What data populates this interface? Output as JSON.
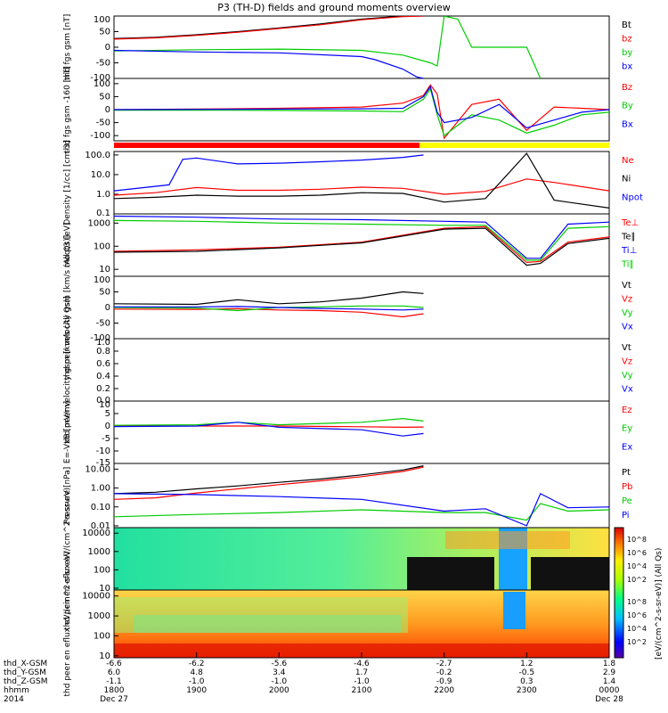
{
  "title": "P3 (TH-D) fields and ground moments overview",
  "colors": {
    "black": "#000000",
    "red": "#ff0000",
    "green": "#00cc00",
    "blue": "#0000ff",
    "yellow": "#ffff00"
  },
  "time_ticks": [
    "1800",
    "1900",
    "2000",
    "2100",
    "2200",
    "2300",
    "0000"
  ],
  "ephemeris": {
    "labels": [
      "thd_X-GSM",
      "thd_Y-GSM",
      "thd_Z-GSM",
      "hhmm",
      "2014"
    ],
    "columns": [
      {
        "x": "-6.6",
        "y": "6.0",
        "z": "-1.1",
        "hhmm": "1800",
        "date": "Dec 27"
      },
      {
        "x": "-6.2",
        "y": "4.8",
        "z": "-1.0",
        "hhmm": "1900",
        "date": ""
      },
      {
        "x": "-5.6",
        "y": "3.4",
        "z": "-1.0",
        "hhmm": "2000",
        "date": ""
      },
      {
        "x": "-4.6",
        "y": "1.7",
        "z": "-1.0",
        "hhmm": "2100",
        "date": ""
      },
      {
        "x": "-2.7",
        "y": "-0.2",
        "z": "-0.9",
        "hhmm": "2200",
        "date": ""
      },
      {
        "x": "1.2",
        "y": "-0.5",
        "z": "0.3",
        "hhmm": "2300",
        "date": ""
      },
      {
        "x": "1.8",
        "y": "2.9",
        "z": "1.4",
        "hhmm": "0000",
        "date": "Dec 28"
      }
    ]
  },
  "colorbar": {
    "label": "[eV/(cm^2-s-sr-eV)] (All Qs)",
    "ticks": [
      "10^8",
      "10^6",
      "10^4",
      "10^2"
    ],
    "ticks_lower": [
      "10^8",
      "10^6",
      "10^4",
      "10^2"
    ]
  },
  "chart_data": [
    {
      "type": "line",
      "name": "fgs",
      "ylabel": "thd fgs gsm [nT]",
      "ylim": [
        -100,
        100
      ],
      "ticks": [
        "100",
        "50",
        "0",
        "-50",
        "-100"
      ],
      "legend": [
        {
          "name": "Bt",
          "color": "#000000"
        },
        {
          "name": "bz",
          "color": "#ff0000"
        },
        {
          "name": "by",
          "color": "#00cc00"
        },
        {
          "name": "bx",
          "color": "#0000ff"
        }
      ],
      "series": [
        {
          "name": "Bt",
          "color": "#000000",
          "x": [
            1800,
            1830,
            1900,
            1930,
            2000,
            2030,
            2100,
            2130,
            2145
          ],
          "y": [
            28,
            32,
            40,
            50,
            62,
            75,
            90,
            100,
            100
          ]
        },
        {
          "name": "bz",
          "color": "#ff0000",
          "x": [
            1800,
            1830,
            1900,
            1930,
            2000,
            2030,
            2100,
            2130,
            2145
          ],
          "y": [
            26,
            30,
            38,
            48,
            60,
            72,
            88,
            98,
            100
          ]
        },
        {
          "name": "by",
          "color": "#00cc00",
          "x": [
            1800,
            1900,
            2000,
            2100,
            2130,
            2150,
            2155,
            2200,
            2210,
            2220,
            2300,
            2310
          ],
          "y": [
            -12,
            -8,
            -6,
            -10,
            -25,
            -50,
            -60,
            100,
            90,
            0,
            0,
            -100
          ]
        },
        {
          "name": "bx",
          "color": "#0000ff",
          "x": [
            1800,
            1900,
            2000,
            2100,
            2110,
            2130,
            2140,
            2145
          ],
          "y": [
            -10,
            -15,
            -18,
            -30,
            -40,
            -70,
            -95,
            -100
          ]
        }
      ]
    },
    {
      "type": "line",
      "name": "fgs_dsl",
      "ylabel": "thd fgs gsm -160 [nT]",
      "ylim": [
        -120,
        120
      ],
      "ticks": [
        "100",
        "50",
        "0",
        "-50",
        "-100"
      ],
      "legend": [
        {
          "name": "Bz",
          "color": "#ff0000"
        },
        {
          "name": "By",
          "color": "#00cc00"
        },
        {
          "name": "Bx",
          "color": "#0000ff"
        }
      ],
      "series": [
        {
          "name": "Bz",
          "color": "#ff0000",
          "x": [
            1800,
            1900,
            2000,
            2100,
            2130,
            2145,
            2150,
            2155,
            2200,
            2220,
            2240,
            2300,
            2320,
            2340,
            2400
          ],
          "y": [
            0,
            2,
            5,
            10,
            25,
            55,
            95,
            60,
            -110,
            20,
            40,
            -80,
            10,
            5,
            0
          ]
        },
        {
          "name": "By",
          "color": "#00cc00",
          "x": [
            1800,
            1900,
            2000,
            2100,
            2130,
            2145,
            2150,
            2155,
            2200,
            2220,
            2240,
            2300,
            2320,
            2340,
            2400
          ],
          "y": [
            -2,
            -2,
            -3,
            -5,
            -8,
            40,
            80,
            -20,
            -100,
            -20,
            -40,
            -90,
            -60,
            -20,
            -10
          ]
        },
        {
          "name": "Bx",
          "color": "#0000ff",
          "x": [
            1800,
            1900,
            2000,
            2100,
            2130,
            2145,
            2150,
            2155,
            2200,
            2220,
            2240,
            2300,
            2320,
            2340,
            2400
          ],
          "y": [
            0,
            1,
            2,
            3,
            5,
            50,
            88,
            -10,
            -50,
            -30,
            20,
            -70,
            -40,
            -10,
            0
          ]
        }
      ]
    },
    {
      "type": "line",
      "name": "density",
      "ylabel": "Density [1/cc] [cm-3]",
      "log": true,
      "ylim": [
        0.1,
        150
      ],
      "ticks": [
        "100.0",
        "10.0",
        "1.0",
        "0.1"
      ],
      "legend": [
        {
          "name": "Ne",
          "color": "#ff0000"
        },
        {
          "name": "Ni",
          "color": "#000000"
        },
        {
          "name": "Npot",
          "color": "#0000ff"
        }
      ],
      "series": [
        {
          "name": "Ne",
          "color": "#ff0000",
          "x": [
            1800,
            1830,
            1900,
            1930,
            2000,
            2030,
            2100,
            2130,
            2200,
            2230,
            2300,
            2320,
            2400
          ],
          "y": [
            0.9,
            1.2,
            2.2,
            1.6,
            1.6,
            1.8,
            2.3,
            2.0,
            1.0,
            1.4,
            6,
            4,
            1.5
          ]
        },
        {
          "name": "Ni",
          "color": "#000000",
          "x": [
            1800,
            1830,
            1900,
            1930,
            2000,
            2030,
            2100,
            2130,
            2200,
            2230,
            2300,
            2320,
            2400
          ],
          "y": [
            0.6,
            0.7,
            0.9,
            0.8,
            0.8,
            0.9,
            1.2,
            1.1,
            0.4,
            0.6,
            120,
            0.5,
            0.2
          ]
        },
        {
          "name": "Npot",
          "color": "#0000ff",
          "x": [
            1800,
            1840,
            1850,
            1900,
            1930,
            2000,
            2030,
            2100,
            2130,
            2145
          ],
          "y": [
            1.5,
            3,
            60,
            70,
            35,
            38,
            45,
            55,
            75,
            100
          ]
        }
      ]
    },
    {
      "type": "line",
      "name": "temperature",
      "ylabel": "moqt3 [eV]",
      "log": true,
      "ylim": [
        5,
        2500
      ],
      "ticks": [
        "1000",
        "100",
        "10"
      ],
      "legend": [
        {
          "name": "Te⊥",
          "color": "#ff0000"
        },
        {
          "name": "Te∥",
          "color": "#000000"
        },
        {
          "name": "Ti⊥",
          "color": "#0000ff"
        },
        {
          "name": "Ti∥",
          "color": "#00cc00"
        }
      ],
      "series": [
        {
          "name": "Te⊥",
          "color": "#ff0000",
          "x": [
            1800,
            1900,
            2000,
            2100,
            2200,
            2230,
            2300,
            2310,
            2330,
            2400
          ],
          "y": [
            60,
            70,
            90,
            150,
            600,
            700,
            20,
            22,
            150,
            250
          ]
        },
        {
          "name": "Te∥",
          "color": "#000000",
          "x": [
            1800,
            1900,
            2000,
            2100,
            2200,
            2230,
            2300,
            2310,
            2330,
            2400
          ],
          "y": [
            55,
            60,
            85,
            140,
            550,
            600,
            15,
            18,
            130,
            220
          ]
        },
        {
          "name": "Ti⊥",
          "color": "#0000ff",
          "x": [
            1800,
            1900,
            2000,
            2100,
            2200,
            2230,
            2300,
            2310,
            2330,
            2400
          ],
          "y": [
            2000,
            1800,
            1500,
            1400,
            1200,
            1100,
            30,
            30,
            900,
            1100
          ]
        },
        {
          "name": "Ti∥",
          "color": "#00cc00",
          "x": [
            1800,
            1900,
            2000,
            2100,
            2200,
            2230,
            2300,
            2310,
            2330,
            2400
          ],
          "y": [
            1300,
            1200,
            1000,
            900,
            800,
            800,
            25,
            25,
            600,
            700
          ]
        }
      ]
    },
    {
      "type": "line",
      "name": "ion_velocity",
      "ylabel": "thd peir velocity gsm [km/s (All Qs)]",
      "ylim": [
        -100,
        100
      ],
      "ticks": [
        "100",
        "50",
        "0",
        "-50",
        "-100"
      ],
      "legend": [
        {
          "name": "Vt",
          "color": "#000000"
        },
        {
          "name": "Vz",
          "color": "#ff0000"
        },
        {
          "name": "Vy",
          "color": "#00cc00"
        },
        {
          "name": "Vx",
          "color": "#0000ff"
        }
      ],
      "series": [
        {
          "name": "Vt",
          "color": "#000000",
          "x": [
            1800,
            1900,
            1930,
            2000,
            2030,
            2100,
            2130,
            2145
          ],
          "y": [
            12,
            10,
            25,
            12,
            18,
            30,
            50,
            45
          ]
        },
        {
          "name": "Vz",
          "color": "#ff0000",
          "x": [
            1800,
            1900,
            1930,
            2000,
            2030,
            2100,
            2130,
            2145
          ],
          "y": [
            -5,
            -6,
            -4,
            -8,
            -10,
            -15,
            -30,
            -20
          ]
        },
        {
          "name": "Vy",
          "color": "#00cc00",
          "x": [
            1800,
            1900,
            1930,
            2000,
            2030,
            2100,
            2130,
            2145
          ],
          "y": [
            0,
            -2,
            -10,
            0,
            2,
            5,
            5,
            0
          ]
        },
        {
          "name": "Vx",
          "color": "#0000ff",
          "x": [
            1800,
            1900,
            1930,
            2000,
            2030,
            2100,
            2130,
            2145
          ],
          "y": [
            2,
            2,
            3,
            0,
            -3,
            -5,
            -8,
            -5
          ]
        }
      ]
    },
    {
      "type": "line",
      "name": "electron_velocity",
      "ylabel": "thd peer velocity gsm [km/s (All Qs)]",
      "ylim": [
        0,
        1
      ],
      "ticks": [
        "1.0",
        "0.8",
        "0.6",
        "0.4",
        "0.2",
        "0.0"
      ],
      "legend": [
        {
          "name": "Vt",
          "color": "#000000"
        },
        {
          "name": "Vz",
          "color": "#ff0000"
        },
        {
          "name": "Vy",
          "color": "#00cc00"
        },
        {
          "name": "Vx",
          "color": "#0000ff"
        }
      ],
      "series": []
    },
    {
      "type": "line",
      "name": "efield",
      "ylabel": "E=-VxB [mV/m]",
      "ylim": [
        -15,
        10
      ],
      "ticks": [
        "10",
        "5",
        "0",
        "-5",
        "-10",
        "-15"
      ],
      "legend": [
        {
          "name": "Ez",
          "color": "#ff0000"
        },
        {
          "name": "Ey",
          "color": "#00cc00"
        },
        {
          "name": "Ex",
          "color": "#0000ff"
        }
      ],
      "series": [
        {
          "name": "Ez",
          "color": "#ff0000",
          "x": [
            1800,
            1900,
            2000,
            2100,
            2130,
            2145
          ],
          "y": [
            0,
            0,
            0,
            -0.3,
            -0.5,
            -0.4
          ]
        },
        {
          "name": "Ey",
          "color": "#00cc00",
          "x": [
            1800,
            1900,
            1930,
            2000,
            2100,
            2130,
            2145
          ],
          "y": [
            0.3,
            0.5,
            1.5,
            0.5,
            1.5,
            3,
            2
          ]
        },
        {
          "name": "Ex",
          "color": "#0000ff",
          "x": [
            1800,
            1900,
            1930,
            2000,
            2100,
            2130,
            2145
          ],
          "y": [
            -0.2,
            0,
            1.5,
            -0.5,
            -1.5,
            -4,
            -3
          ]
        }
      ]
    },
    {
      "type": "line",
      "name": "pressure",
      "ylabel": "Pressure [nPa]",
      "log": true,
      "ylim": [
        0.008,
        20
      ],
      "ticks": [
        "10.00",
        "1.00",
        "0.10",
        "0.01"
      ],
      "legend": [
        {
          "name": "Pt",
          "color": "#000000"
        },
        {
          "name": "Pb",
          "color": "#ff0000"
        },
        {
          "name": "Pe",
          "color": "#00cc00"
        },
        {
          "name": "Pi",
          "color": "#0000ff"
        }
      ],
      "series": [
        {
          "name": "Pt",
          "color": "#000000",
          "x": [
            1800,
            1830,
            1900,
            1930,
            2000,
            2030,
            2100,
            2130,
            2145
          ],
          "y": [
            0.5,
            0.6,
            0.9,
            1.3,
            2.0,
            3.0,
            5.0,
            9.0,
            15
          ]
        },
        {
          "name": "Pb",
          "color": "#ff0000",
          "x": [
            1800,
            1830,
            1900,
            1930,
            2000,
            2030,
            2100,
            2130,
            2145
          ],
          "y": [
            0.25,
            0.3,
            0.55,
            0.9,
            1.5,
            2.4,
            4.0,
            7.5,
            13
          ]
        },
        {
          "name": "Pe",
          "color": "#00cc00",
          "x": [
            1800,
            1900,
            2000,
            2100,
            2200,
            2230,
            2300,
            2310,
            2330,
            2400
          ],
          "y": [
            0.03,
            0.04,
            0.05,
            0.07,
            0.05,
            0.05,
            0.02,
            0.15,
            0.06,
            0.07
          ]
        },
        {
          "name": "Pi",
          "color": "#0000ff",
          "x": [
            1800,
            1900,
            2000,
            2100,
            2200,
            2230,
            2300,
            2310,
            2330,
            2400
          ],
          "y": [
            0.5,
            0.45,
            0.35,
            0.25,
            0.06,
            0.08,
            0.01,
            0.5,
            0.09,
            0.1
          ]
        }
      ]
    },
    {
      "type": "heatmap",
      "name": "ion_eflux",
      "ylabel": "thd peir en eflux eV/(cm^2-s-sr-eV)",
      "log": true,
      "ylim": [
        8,
        20000
      ],
      "ticks": [
        "10000",
        "1000",
        "100",
        "10"
      ]
    },
    {
      "type": "heatmap",
      "name": "electron_eflux",
      "ylabel": "thd peer en eflux eV/(cm^2-s-sr-eV)",
      "log": true,
      "ylim": [
        8,
        20000
      ],
      "ticks": [
        "10000",
        "1000",
        "100",
        "10"
      ]
    }
  ]
}
